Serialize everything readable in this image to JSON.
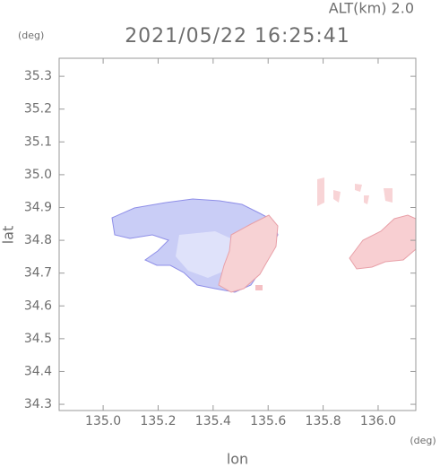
{
  "chart_data": {
    "type": "field",
    "title": "2021/05/22 16:25:41",
    "subtitle": "ALT(km) 2.0",
    "x_label": "lon",
    "y_label": "lat",
    "x_unit": "(deg)",
    "y_unit": "(deg)",
    "xlim": [
      134.84,
      136.137
    ],
    "ylim": [
      34.281,
      35.355
    ],
    "xticks": [
      {
        "value": 135.0,
        "label": "135.0"
      },
      135.2,
      135.4,
      135.6,
      135.8,
      {
        "value": 136.0,
        "label": "136.0"
      }
    ],
    "yticks": [
      34.3,
      34.4,
      34.5,
      34.6,
      34.7,
      34.8,
      34.9,
      {
        "value": 35.0,
        "label": "35.0"
      },
      35.1,
      35.2,
      35.3
    ]
  }
}
